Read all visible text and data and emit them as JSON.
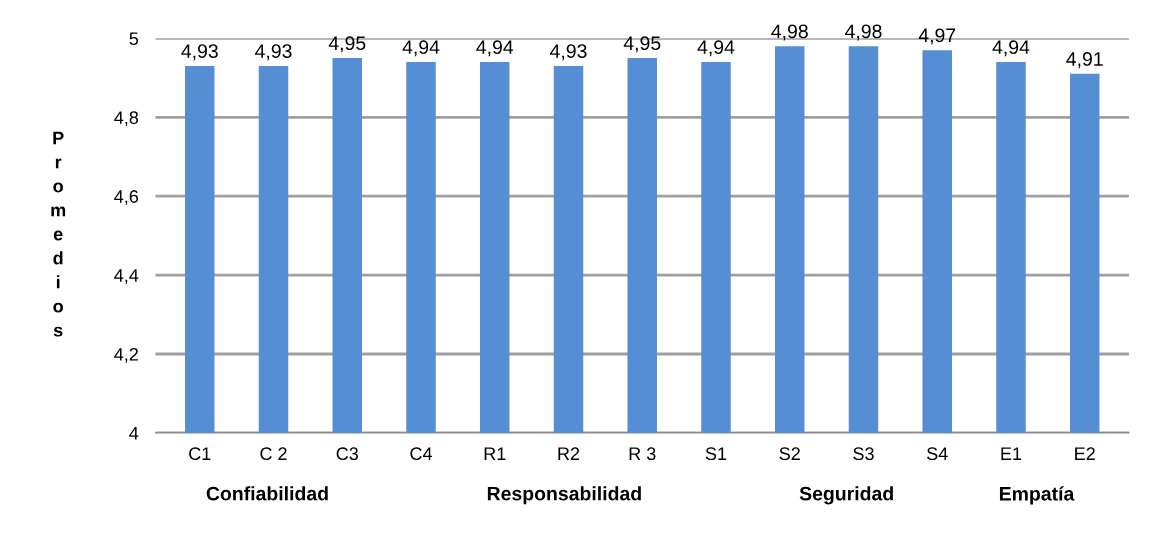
{
  "chart_data": {
    "type": "bar",
    "ylabel": "Promedios",
    "categories": [
      "C1",
      "C 2",
      "C3",
      "C4",
      "R1",
      "R2",
      "R 3",
      "S1",
      "S2",
      "S3",
      "S4",
      "E1",
      "E2"
    ],
    "values": [
      4.93,
      4.93,
      4.95,
      4.94,
      4.94,
      4.93,
      4.95,
      4.94,
      4.98,
      4.98,
      4.97,
      4.94,
      4.91
    ],
    "value_labels": [
      "4,93",
      "4,93",
      "4,95",
      "4,94",
      "4,94",
      "4,93",
      "4,95",
      "4,94",
      "4,98",
      "4,98",
      "4,97",
      "4,94",
      "4,91"
    ],
    "color": "#558ed5",
    "ylim": [
      4,
      5
    ],
    "yticks": [
      4,
      {
        "value": 4.2,
        "label": "4,2"
      },
      {
        "value": 4.4,
        "label": "4,4"
      },
      {
        "value": 4.6,
        "label": "4,6"
      },
      {
        "value": 4.8,
        "label": "4,8"
      },
      5
    ],
    "grid": "y",
    "annotations": [
      "Confiabilidad",
      "Responsabilidad",
      "Seguridad",
      "Empatía"
    ]
  }
}
